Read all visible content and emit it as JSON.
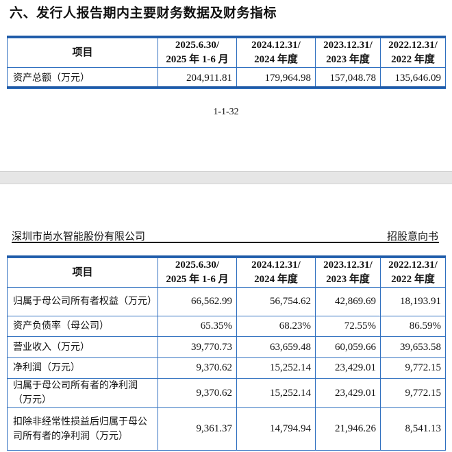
{
  "page1": {
    "section_title": "六、发行人报告期内主要财务数据及财务指标",
    "page_number": "1-1-32",
    "table": {
      "headers": [
        "项目",
        "2025.6.30/\n2025 年 1-6 月",
        "2024.12.31/\n2024 年度",
        "2023.12.31/\n2023 年度",
        "2022.12.31/\n2022 年度"
      ],
      "rows": [
        [
          "资产总额（万元）",
          "204,911.81",
          "179,964.98",
          "157,048.78",
          "135,646.09"
        ]
      ]
    }
  },
  "page2": {
    "header_left": "深圳市尚水智能股份有限公司",
    "header_right": "招股意向书",
    "table": {
      "headers": [
        "项目",
        "2025.6.30/\n2025 年 1-6 月",
        "2024.12.31/\n2024 年度",
        "2023.12.31/\n2023 年度",
        "2022.12.31/\n2022 年度"
      ],
      "rows": [
        [
          "归属于母公司所有者权益（万元）",
          "66,562.99",
          "56,754.62",
          "42,869.69",
          "18,193.91"
        ],
        [
          "资产负债率（母公司）",
          "65.35%",
          "68.23%",
          "72.55%",
          "86.59%"
        ],
        [
          "营业收入（万元）",
          "39,770.73",
          "63,659.48",
          "60,059.66",
          "39,653.58"
        ],
        [
          "净利润（万元）",
          "9,370.62",
          "15,252.14",
          "23,429.01",
          "9,772.15"
        ],
        [
          "归属于母公司所有者的净利润（万元）",
          "9,370.62",
          "15,252.14",
          "23,429.01",
          "9,772.15"
        ],
        [
          "扣除非经常性损益后归属于母公司所有者的净利润（万元）",
          "9,361.37",
          "14,794.94",
          "21,946.26",
          "8,541.13"
        ]
      ]
    }
  }
}
